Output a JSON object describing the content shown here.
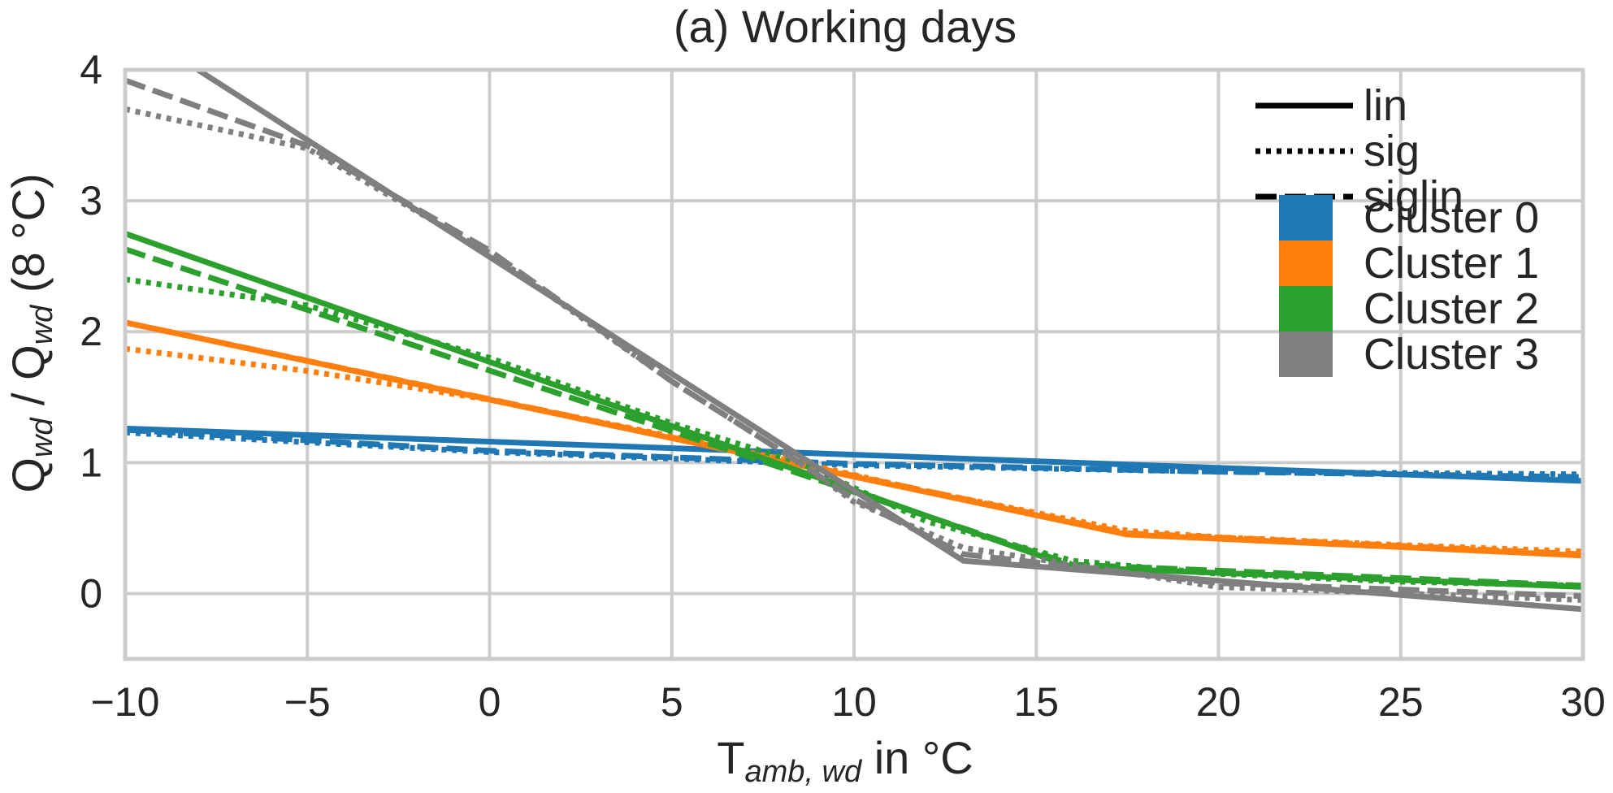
{
  "chart_data": {
    "type": "line",
    "title": "(a) Working days",
    "xlabel": {
      "main": "T",
      "sub": "amb, wd",
      "rest": " in °C"
    },
    "ylabel": {
      "q1": "Q",
      "sub1": "wd",
      "mid": " / Q",
      "sub2": "wd",
      "rest": " (8 °C)"
    },
    "xlim": [
      -10,
      30
    ],
    "ylim": [
      -0.5,
      4
    ],
    "xticks": [
      -10,
      -5,
      0,
      5,
      10,
      15,
      20,
      25,
      30
    ],
    "xtick_labels": [
      "−10",
      "−5",
      "0",
      "5",
      "10",
      "15",
      "20",
      "25",
      "30"
    ],
    "yticks": [
      0,
      1,
      2,
      3,
      4
    ],
    "ytick_labels": [
      "0",
      "1",
      "2",
      "3",
      "4"
    ],
    "grid": true,
    "legend_position": "top-right",
    "styles": [
      {
        "name": "lin",
        "dash": "solid"
      },
      {
        "name": "sig",
        "dash": "dotted"
      },
      {
        "name": "siglin",
        "dash": "dashed"
      }
    ],
    "clusters": [
      {
        "name": "Cluster 0",
        "color": "#1f77b4"
      },
      {
        "name": "Cluster 1",
        "color": "#ff7f0e"
      },
      {
        "name": "Cluster 2",
        "color": "#2ca02c"
      },
      {
        "name": "Cluster 3",
        "color": "#7f7f7f"
      }
    ],
    "series": [
      {
        "cluster": 0,
        "style": "lin",
        "x": [
          -10,
          30
        ],
        "y": [
          1.26,
          0.86
        ]
      },
      {
        "cluster": 0,
        "style": "sig",
        "x": [
          -10,
          0,
          10,
          20,
          30
        ],
        "y": [
          1.23,
          1.08,
          0.98,
          0.93,
          0.91
        ]
      },
      {
        "cluster": 0,
        "style": "siglin",
        "x": [
          -10,
          0,
          10,
          20,
          30
        ],
        "y": [
          1.25,
          1.09,
          0.99,
          0.93,
          0.89
        ]
      },
      {
        "cluster": 1,
        "style": "lin",
        "x": [
          -10,
          17.5,
          30
        ],
        "y": [
          2.07,
          0.45,
          0.29
        ]
      },
      {
        "cluster": 1,
        "style": "sig",
        "x": [
          -10,
          -5,
          0,
          5,
          8.5,
          12,
          17.5,
          20,
          25,
          30
        ],
        "y": [
          1.87,
          1.7,
          1.48,
          1.2,
          1.0,
          0.78,
          0.48,
          0.43,
          0.37,
          0.32
        ]
      },
      {
        "cluster": 1,
        "style": "siglin",
        "x": [
          -10,
          17.5,
          30
        ],
        "y": [
          2.07,
          0.46,
          0.3
        ]
      },
      {
        "cluster": 2,
        "style": "lin",
        "x": [
          -10,
          16,
          30
        ],
        "y": [
          2.75,
          0.2,
          0.05
        ]
      },
      {
        "cluster": 2,
        "style": "sig",
        "x": [
          -10,
          -5,
          0,
          5,
          8.5,
          12,
          16,
          20,
          25,
          30
        ],
        "y": [
          2.4,
          2.2,
          1.8,
          1.3,
          1.0,
          0.55,
          0.25,
          0.15,
          0.09,
          0.06
        ]
      },
      {
        "cluster": 2,
        "style": "siglin",
        "x": [
          -10,
          16,
          30
        ],
        "y": [
          2.63,
          0.22,
          0.06
        ]
      },
      {
        "cluster": 3,
        "style": "lin",
        "x": [
          -8,
          13,
          30
        ],
        "y": [
          4.0,
          0.25,
          -0.12
        ]
      },
      {
        "cluster": 3,
        "style": "sig",
        "x": [
          -10,
          -5,
          0,
          5,
          8.5,
          10,
          13,
          20,
          25,
          30
        ],
        "y": [
          3.7,
          3.4,
          2.6,
          1.62,
          1.0,
          0.7,
          0.35,
          0.05,
          0.0,
          -0.05
        ]
      },
      {
        "cluster": 3,
        "style": "siglin",
        "x": [
          -10,
          -5,
          0,
          5,
          8.5,
          10,
          13,
          20,
          25,
          30
        ],
        "y": [
          3.92,
          3.42,
          2.62,
          1.62,
          1.0,
          0.72,
          0.3,
          0.08,
          0.03,
          -0.02
        ]
      }
    ]
  }
}
